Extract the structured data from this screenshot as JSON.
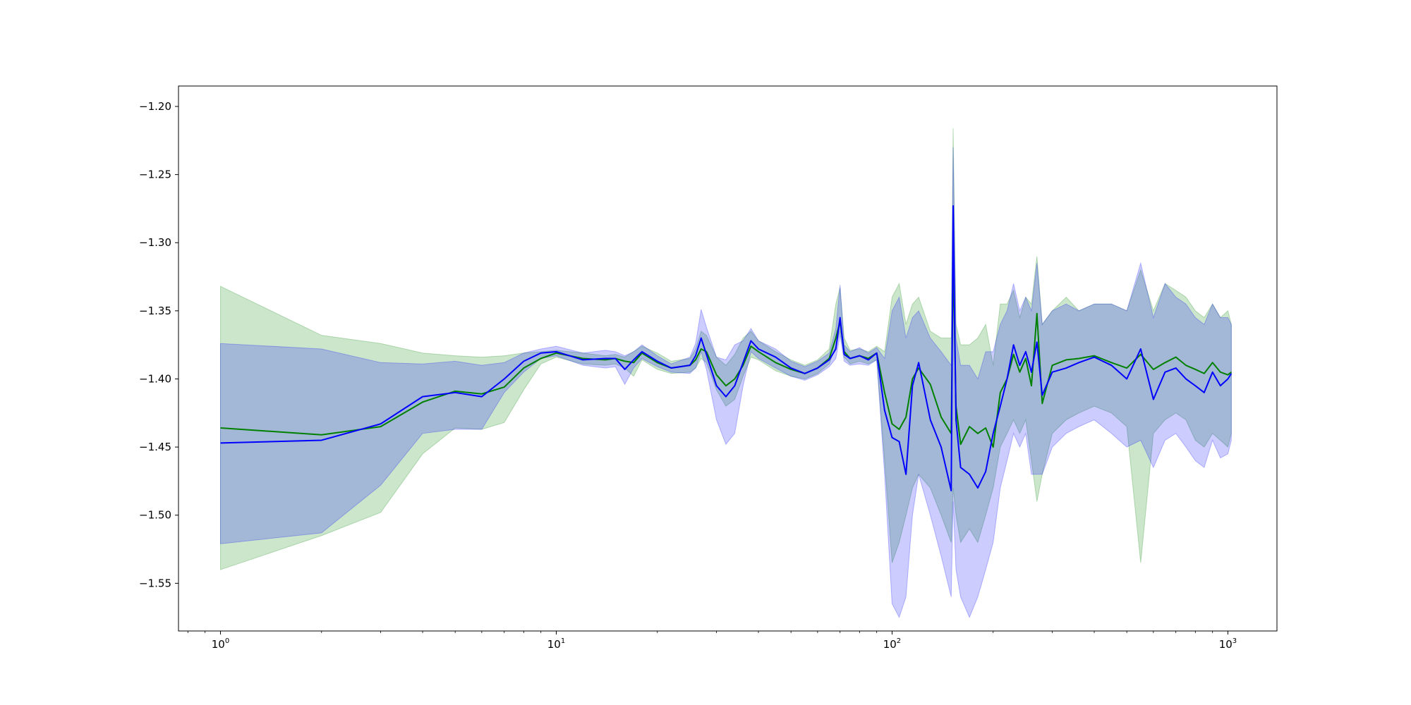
{
  "chart_data": {
    "type": "line",
    "xscale": "log",
    "xlim": [
      0.75,
      1400
    ],
    "ylim": [
      -1.585,
      -1.185
    ],
    "yticks": [
      {
        "value": -1.2,
        "label": "−1.20"
      },
      {
        "value": -1.25,
        "label": "−1.25"
      },
      {
        "value": -1.3,
        "label": "−1.30"
      },
      {
        "value": -1.35,
        "label": "−1.35"
      },
      {
        "value": -1.4,
        "label": "−1.40"
      },
      {
        "value": -1.45,
        "label": "−1.45"
      },
      {
        "value": -1.5,
        "label": "−1.50"
      },
      {
        "value": -1.55,
        "label": "−1.55"
      }
    ],
    "xticks": [
      {
        "value": 1,
        "base": "10",
        "exp": "0"
      },
      {
        "value": 10,
        "base": "10",
        "exp": "1"
      },
      {
        "value": 100,
        "base": "10",
        "exp": "2"
      },
      {
        "value": 1000,
        "base": "10",
        "exp": "3"
      }
    ],
    "grid": false,
    "legend": "none",
    "series": [
      {
        "color": "#008000",
        "band_color": "#008000",
        "band_opacity": 0.2,
        "x": [
          1,
          2,
          3,
          4,
          5,
          6,
          7,
          8,
          9,
          10,
          12,
          14,
          15,
          16,
          17,
          18,
          20,
          22,
          25,
          26,
          27,
          28,
          30,
          32,
          34,
          36,
          38,
          40,
          45,
          50,
          55,
          60,
          65,
          68,
          70,
          72,
          75,
          80,
          85,
          90,
          95,
          100,
          105,
          110,
          115,
          120,
          130,
          140,
          150,
          152,
          155,
          160,
          170,
          180,
          190,
          200,
          210,
          220,
          230,
          240,
          250,
          260,
          270,
          280,
          300,
          330,
          360,
          400,
          450,
          500,
          550,
          600,
          650,
          700,
          750,
          800,
          850,
          900,
          950,
          1000,
          1024
        ],
        "y": [
          -1.436,
          -1.441,
          -1.435,
          -1.417,
          -1.409,
          -1.411,
          -1.406,
          -1.392,
          -1.385,
          -1.381,
          -1.385,
          -1.386,
          -1.385,
          -1.387,
          -1.388,
          -1.381,
          -1.388,
          -1.392,
          -1.39,
          -1.386,
          -1.378,
          -1.38,
          -1.397,
          -1.405,
          -1.4,
          -1.39,
          -1.376,
          -1.38,
          -1.388,
          -1.393,
          -1.396,
          -1.392,
          -1.385,
          -1.37,
          -1.358,
          -1.38,
          -1.385,
          -1.383,
          -1.385,
          -1.381,
          -1.41,
          -1.433,
          -1.437,
          -1.428,
          -1.4,
          -1.392,
          -1.404,
          -1.428,
          -1.44,
          -1.312,
          -1.42,
          -1.448,
          -1.435,
          -1.44,
          -1.436,
          -1.45,
          -1.41,
          -1.4,
          -1.382,
          -1.395,
          -1.385,
          -1.405,
          -1.352,
          -1.418,
          -1.39,
          -1.386,
          -1.385,
          -1.383,
          -1.388,
          -1.392,
          -1.382,
          -1.393,
          -1.388,
          -1.384,
          -1.39,
          -1.393,
          -1.396,
          -1.388,
          -1.395,
          -1.397,
          -1.395
        ],
        "lower": [
          -1.54,
          -1.515,
          -1.498,
          -1.455,
          -1.436,
          -1.437,
          -1.432,
          -1.408,
          -1.389,
          -1.384,
          -1.389,
          -1.39,
          -1.389,
          -1.392,
          -1.398,
          -1.386,
          -1.393,
          -1.396,
          -1.395,
          -1.392,
          -1.385,
          -1.388,
          -1.408,
          -1.42,
          -1.415,
          -1.398,
          -1.384,
          -1.386,
          -1.394,
          -1.398,
          -1.4,
          -1.396,
          -1.389,
          -1.376,
          -1.365,
          -1.384,
          -1.389,
          -1.387,
          -1.389,
          -1.386,
          -1.46,
          -1.535,
          -1.52,
          -1.5,
          -1.48,
          -1.47,
          -1.48,
          -1.5,
          -1.52,
          -1.48,
          -1.5,
          -1.52,
          -1.51,
          -1.52,
          -1.5,
          -1.48,
          -1.45,
          -1.44,
          -1.43,
          -1.44,
          -1.43,
          -1.46,
          -1.49,
          -1.47,
          -1.44,
          -1.43,
          -1.425,
          -1.42,
          -1.425,
          -1.435,
          -1.535,
          -1.44,
          -1.43,
          -1.425,
          -1.43,
          -1.445,
          -1.45,
          -1.44,
          -1.445,
          -1.45,
          -1.44
        ],
        "upper": [
          -1.332,
          -1.368,
          -1.374,
          -1.381,
          -1.383,
          -1.384,
          -1.383,
          -1.381,
          -1.38,
          -1.379,
          -1.381,
          -1.383,
          -1.382,
          -1.384,
          -1.38,
          -1.376,
          -1.381,
          -1.387,
          -1.385,
          -1.378,
          -1.365,
          -1.368,
          -1.384,
          -1.39,
          -1.382,
          -1.37,
          -1.365,
          -1.372,
          -1.38,
          -1.386,
          -1.39,
          -1.386,
          -1.378,
          -1.345,
          -1.333,
          -1.37,
          -1.379,
          -1.378,
          -1.38,
          -1.376,
          -1.38,
          -1.34,
          -1.33,
          -1.36,
          -1.345,
          -1.34,
          -1.365,
          -1.37,
          -1.37,
          -1.216,
          -1.36,
          -1.375,
          -1.375,
          -1.37,
          -1.36,
          -1.39,
          -1.345,
          -1.345,
          -1.335,
          -1.355,
          -1.34,
          -1.345,
          -1.31,
          -1.36,
          -1.35,
          -1.34,
          -1.35,
          -1.345,
          -1.345,
          -1.35,
          -1.32,
          -1.35,
          -1.33,
          -1.335,
          -1.34,
          -1.35,
          -1.355,
          -1.345,
          -1.355,
          -1.35,
          -1.36
        ]
      },
      {
        "color": "#0000ff",
        "band_color": "#0000ff",
        "band_opacity": 0.2,
        "x": [
          1,
          2,
          3,
          4,
          5,
          6,
          7,
          8,
          9,
          10,
          12,
          14,
          15,
          16,
          17,
          18,
          20,
          22,
          25,
          26,
          27,
          28,
          30,
          32,
          34,
          36,
          38,
          40,
          45,
          50,
          55,
          60,
          65,
          68,
          70,
          72,
          75,
          80,
          85,
          90,
          95,
          100,
          105,
          110,
          115,
          120,
          130,
          140,
          150,
          152,
          155,
          160,
          170,
          180,
          190,
          200,
          210,
          220,
          230,
          240,
          250,
          260,
          270,
          280,
          300,
          330,
          360,
          400,
          450,
          500,
          550,
          600,
          650,
          700,
          750,
          800,
          850,
          900,
          950,
          1000,
          1024
        ],
        "y": [
          -1.447,
          -1.445,
          -1.433,
          -1.413,
          -1.41,
          -1.413,
          -1.4,
          -1.387,
          -1.381,
          -1.38,
          -1.386,
          -1.385,
          -1.385,
          -1.393,
          -1.386,
          -1.38,
          -1.387,
          -1.392,
          -1.39,
          -1.383,
          -1.37,
          -1.382,
          -1.405,
          -1.413,
          -1.405,
          -1.388,
          -1.372,
          -1.378,
          -1.384,
          -1.392,
          -1.396,
          -1.392,
          -1.386,
          -1.378,
          -1.355,
          -1.382,
          -1.385,
          -1.383,
          -1.386,
          -1.381,
          -1.423,
          -1.443,
          -1.446,
          -1.47,
          -1.405,
          -1.388,
          -1.43,
          -1.45,
          -1.482,
          -1.273,
          -1.43,
          -1.465,
          -1.47,
          -1.48,
          -1.468,
          -1.44,
          -1.42,
          -1.4,
          -1.375,
          -1.39,
          -1.38,
          -1.395,
          -1.373,
          -1.412,
          -1.395,
          -1.392,
          -1.388,
          -1.384,
          -1.39,
          -1.4,
          -1.378,
          -1.415,
          -1.395,
          -1.392,
          -1.4,
          -1.405,
          -1.41,
          -1.395,
          -1.405,
          -1.4,
          -1.396
        ],
        "lower": [
          -1.521,
          -1.513,
          -1.478,
          -1.44,
          -1.437,
          -1.437,
          -1.41,
          -1.395,
          -1.385,
          -1.383,
          -1.39,
          -1.392,
          -1.391,
          -1.404,
          -1.392,
          -1.385,
          -1.391,
          -1.395,
          -1.396,
          -1.392,
          -1.38,
          -1.393,
          -1.43,
          -1.448,
          -1.44,
          -1.405,
          -1.38,
          -1.385,
          -1.392,
          -1.398,
          -1.401,
          -1.397,
          -1.391,
          -1.385,
          -1.368,
          -1.387,
          -1.39,
          -1.389,
          -1.39,
          -1.386,
          -1.47,
          -1.565,
          -1.575,
          -1.56,
          -1.5,
          -1.47,
          -1.5,
          -1.53,
          -1.56,
          -1.49,
          -1.54,
          -1.56,
          -1.575,
          -1.56,
          -1.54,
          -1.52,
          -1.48,
          -1.46,
          -1.44,
          -1.45,
          -1.44,
          -1.47,
          -1.47,
          -1.47,
          -1.45,
          -1.44,
          -1.435,
          -1.43,
          -1.44,
          -1.45,
          -1.445,
          -1.465,
          -1.445,
          -1.44,
          -1.45,
          -1.46,
          -1.465,
          -1.445,
          -1.458,
          -1.455,
          -1.445
        ],
        "upper": [
          -1.374,
          -1.378,
          -1.388,
          -1.389,
          -1.387,
          -1.39,
          -1.388,
          -1.381,
          -1.378,
          -1.376,
          -1.381,
          -1.379,
          -1.38,
          -1.383,
          -1.38,
          -1.375,
          -1.383,
          -1.389,
          -1.384,
          -1.374,
          -1.349,
          -1.362,
          -1.384,
          -1.386,
          -1.375,
          -1.372,
          -1.363,
          -1.372,
          -1.378,
          -1.387,
          -1.391,
          -1.387,
          -1.381,
          -1.363,
          -1.331,
          -1.375,
          -1.38,
          -1.377,
          -1.381,
          -1.377,
          -1.385,
          -1.35,
          -1.34,
          -1.37,
          -1.355,
          -1.35,
          -1.37,
          -1.38,
          -1.39,
          -1.23,
          -1.37,
          -1.39,
          -1.39,
          -1.4,
          -1.38,
          -1.38,
          -1.36,
          -1.35,
          -1.33,
          -1.35,
          -1.34,
          -1.35,
          -1.315,
          -1.36,
          -1.35,
          -1.345,
          -1.35,
          -1.345,
          -1.345,
          -1.35,
          -1.315,
          -1.355,
          -1.33,
          -1.34,
          -1.345,
          -1.355,
          -1.36,
          -1.345,
          -1.355,
          -1.355,
          -1.36
        ]
      }
    ]
  }
}
